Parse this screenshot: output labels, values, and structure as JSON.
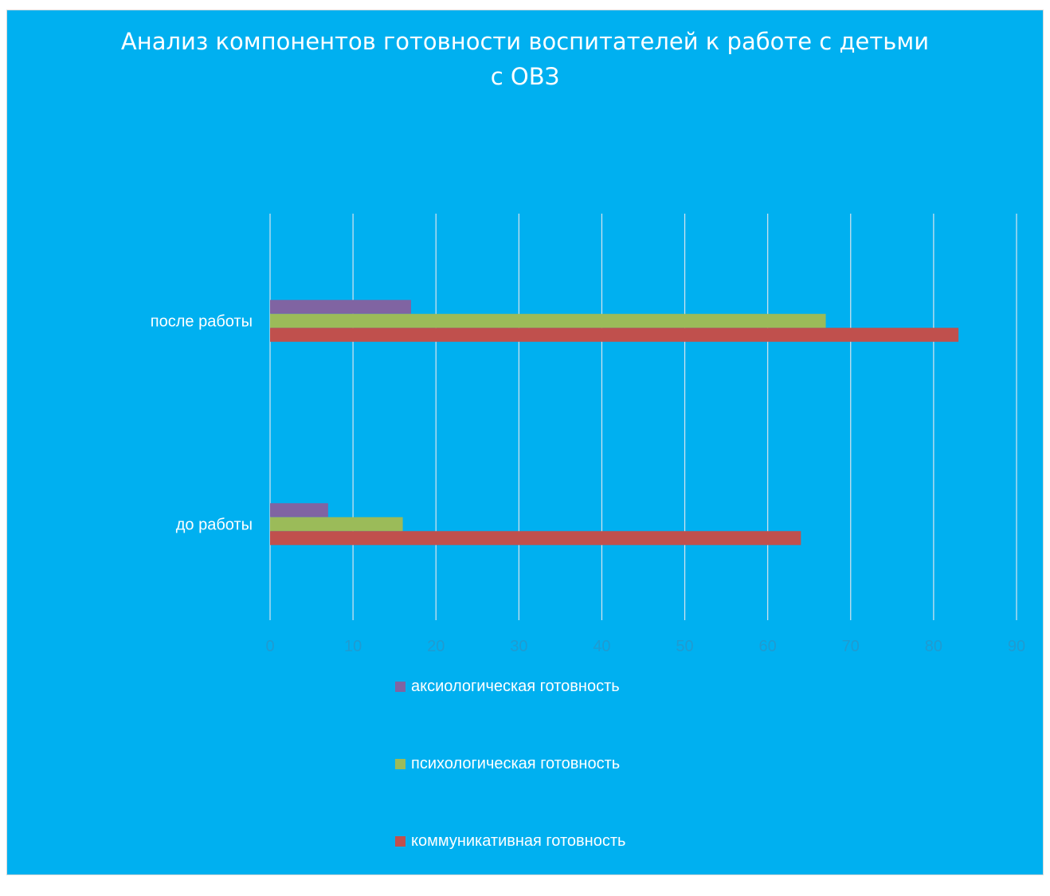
{
  "chart_data": {
    "type": "bar",
    "orientation": "horizontal",
    "title": "Анализ компонентов готовности воспитателей к работе с детьми с ОВЗ",
    "title_lines": [
      "Анализ компонентов готовности воспитателей к работе с детьми",
      "с ОВЗ"
    ],
    "categories": [
      "после работы",
      "до работы"
    ],
    "series": [
      {
        "name": "аксиологическая готовность",
        "color": "#8064a2",
        "values": [
          17,
          7
        ]
      },
      {
        "name": "психологическая готовность",
        "color": "#9bbb59",
        "values": [
          67,
          16
        ]
      },
      {
        "name": "коммуникативная готовность",
        "color": "#c0504d",
        "values": [
          83,
          64
        ]
      }
    ],
    "xlim": [
      0,
      90
    ],
    "xticks": [
      "0",
      "10",
      "20",
      "30",
      "40",
      "50",
      "60",
      "70",
      "80",
      "90"
    ],
    "grid": true,
    "legend_position": "bottom",
    "background": "#00b0f0"
  }
}
